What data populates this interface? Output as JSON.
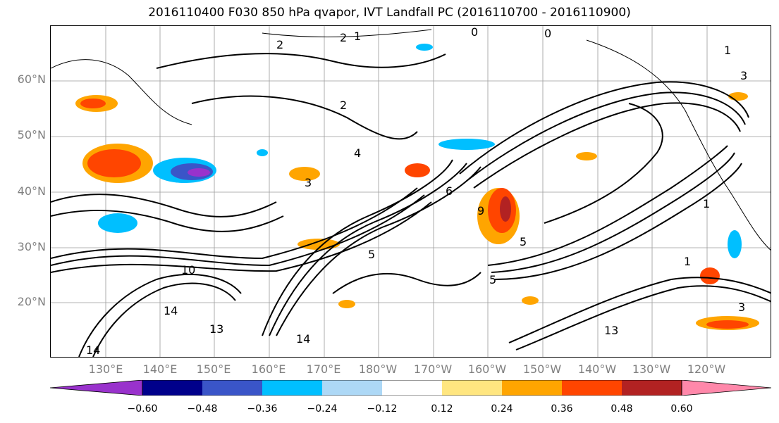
{
  "title": "2016110400 F030 850 hPa qvapor, IVT Landfall PC (2016110700 - 2016110900)",
  "lat_labels": [
    "60°N",
    "50°N",
    "40°N",
    "30°N",
    "20°N"
  ],
  "lon_labels": [
    "130°E",
    "140°E",
    "150°E",
    "160°E",
    "170°E",
    "180°W",
    "170°W",
    "160°W",
    "150°W",
    "140°W",
    "130°W",
    "120°W"
  ],
  "colorbar": {
    "ticks": [
      "−0.60",
      "−0.48",
      "−0.36",
      "−0.24",
      "−0.12",
      "0.12",
      "0.24",
      "0.36",
      "0.48",
      "0.60"
    ],
    "colors": [
      "#9932CC",
      "#00008B",
      "#3A55C8",
      "#00BFFF",
      "#ADD8F6",
      "#FFFFFF",
      "#FFE680",
      "#FFA500",
      "#FF4500",
      "#B22222",
      "#FF88AA"
    ]
  },
  "contour_labels": [
    "0",
    "2",
    "1",
    "1",
    "2",
    "3",
    "4",
    "5",
    "5",
    "6",
    "9",
    "10",
    "13",
    "13",
    "14",
    "14",
    "14",
    "5",
    "3",
    "1",
    "1",
    "3",
    "2",
    "0"
  ]
}
